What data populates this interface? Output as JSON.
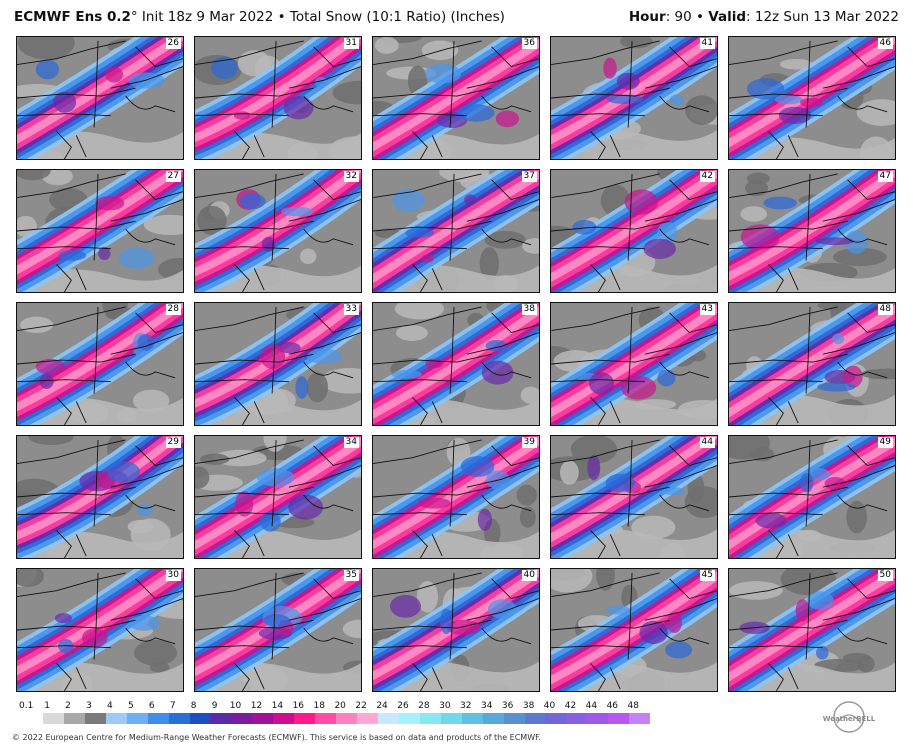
{
  "header": {
    "model": "ECMWF Ens 0.2",
    "degree": "°",
    "init": " Init 18z 9 Mar 2022",
    "sep1": " • ",
    "product": "Total Snow (10:1 Ratio) (Inches)",
    "hour_label": "Hour",
    "hour_value": ": 90 • ",
    "valid_label": "Valid",
    "valid_value": ": 12z Sun 13 Mar 2022"
  },
  "panels": {
    "rows": 5,
    "cols": 5,
    "members": [
      [
        "26",
        "31",
        "36",
        "41",
        "46"
      ],
      [
        "27",
        "32",
        "37",
        "42",
        "47"
      ],
      [
        "28",
        "33",
        "38",
        "43",
        "48"
      ],
      [
        "29",
        "34",
        "39",
        "44",
        "49"
      ],
      [
        "30",
        "35",
        "40",
        "45",
        "50"
      ]
    ]
  },
  "colorbar": {
    "labels": [
      "0.1",
      "1",
      "2",
      "3",
      "4",
      "5",
      "6",
      "7",
      "8",
      "9",
      "10",
      "12",
      "14",
      "16",
      "18",
      "20",
      "22",
      "24",
      "26",
      "28",
      "30",
      "32",
      "34",
      "36",
      "38",
      "40",
      "42",
      "44",
      "46",
      "48"
    ],
    "colors": [
      "#ffffff",
      "#d9d9d9",
      "#a8a8a8",
      "#7a7a7a",
      "#9ecbf5",
      "#6fb0f0",
      "#3f8fe6",
      "#2a6fd6",
      "#1d4fc0",
      "#5a2aa8",
      "#7a1ca0",
      "#a0129a",
      "#cc1090",
      "#ff1a8c",
      "#ff4da6",
      "#ff80bf",
      "#ffa8d4",
      "#c8e8ff",
      "#a8f0ff",
      "#88e8f0",
      "#70d8e8",
      "#60c0e0",
      "#58a8d8",
      "#5890d0",
      "#6078d0",
      "#7068d8",
      "#8860e0",
      "#a058e8",
      "#b858f0",
      "#c880f8"
    ]
  },
  "footer": {
    "copyright": "© 2022 European Centre for Medium-Range Weather Forecasts (ECMWF). This service is based on data and products of the ECMWF."
  },
  "logo": {
    "text": "WeatherBELL"
  },
  "map_colors": {
    "gray_dark": "#6e6e6e",
    "gray_mid": "#8d8d8d",
    "gray_light": "#b8b8b8",
    "blue_light": "#8ec4f3",
    "blue": "#4a96ea",
    "blue_dark": "#2a68d8",
    "purple": "#6a2aaa",
    "magenta": "#c8168f",
    "pink": "#ff3d9e",
    "pink_light": "#ff8cc6"
  }
}
